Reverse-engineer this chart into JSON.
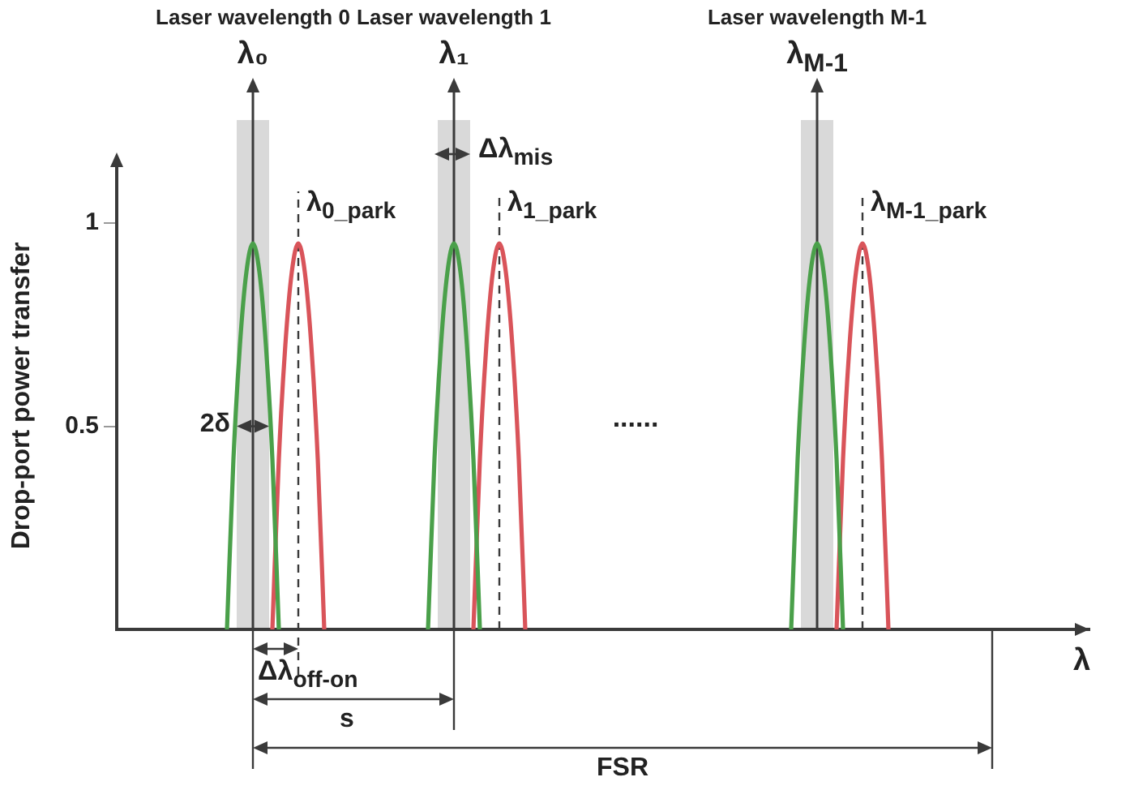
{
  "chart_data": {
    "type": "line",
    "xlabel": "λ",
    "ylabel": "Drop-port power transfer",
    "ylim": [
      0,
      1.15
    ],
    "yticks": [
      0.5,
      1
    ],
    "grid": false,
    "marker": "none",
    "annotations": [
      "Laser wavelength 0",
      "Laser wavelength 1",
      "Laser wavelength M-1",
      "λ₀",
      "λ₁",
      "λ$_{M-1}$",
      "λ$_{0_park}$",
      "λ$_{1_park}$",
      "λ$_{M-1_park}$",
      "Δλ$_{mis}$",
      "2δ",
      "......",
      "Δλ$_{off-on}$",
      "s",
      "FSR"
    ],
    "categories": [
      null,
      null,
      null,
      null,
      null,
      null,
      null,
      null,
      null,
      null,
      null,
      null,
      null,
      null,
      null,
      null,
      null,
      null,
      null,
      null,
      null,
      null,
      null,
      null,
      null,
      null,
      null,
      null,
      null,
      null,
      null,
      null,
      null,
      null,
      null,
      null,
      null,
      null,
      null,
      null,
      null,
      null,
      null,
      null,
      null,
      null,
      null,
      null,
      null,
      null,
      null,
      null,
      null,
      null,
      null,
      null,
      null,
      null,
      null,
      null,
      null,
      null,
      null,
      null,
      null,
      null,
      null,
      null,
      null,
      null,
      null,
      null,
      null,
      null,
      null,
      null,
      null,
      null,
      null,
      null,
      null,
      null,
      null,
      null,
      null,
      null,
      null,
      null,
      null,
      null,
      null,
      null,
      null,
      null,
      null,
      null,
      null,
      null,
      null,
      null,
      null,
      null,
      null,
      null,
      null,
      null,
      null,
      null,
      null,
      null,
      null,
      null,
      null,
      null,
      null,
      null,
      null,
      null,
      null,
      null,
      null,
      null,
      null,
      null,
      null,
      null,
      null,
      null,
      null,
      null,
      null,
      null,
      null,
      null,
      null,
      null,
      null,
      null,
      null,
      null,
      null,
      null,
      null,
      null,
      null,
      null,
      null,
      null,
      null,
      null,
      null
    ],
    "series": [
      {
        "color": "#4aa04a",
        "values": [
          null,
          null,
          null,
          null,
          null,
          null,
          null,
          null,
          null,
          null,
          null,
          null,
          null,
          null,
          null,
          null,
          null,
          0,
          0.42,
          0.7,
          0.88,
          0.95,
          0.88,
          0.7,
          0.42,
          0,
          null,
          null,
          null,
          null,
          null,
          null,
          null,
          null,
          null,
          null,
          null,
          null,
          null,
          null,
          null,
          null,
          null,
          null,
          null,
          null,
          null,
          null,
          0,
          0.42,
          0.7,
          0.88,
          0.95,
          0.88,
          0.7,
          0.42,
          0,
          null,
          null,
          null,
          null,
          null,
          null,
          null,
          null,
          null,
          null,
          null,
          null,
          null,
          null,
          null,
          null,
          null,
          null,
          null,
          null,
          null,
          null,
          null,
          null,
          null,
          null,
          null,
          null,
          null,
          null,
          null,
          null,
          null,
          null,
          null,
          null,
          null,
          null,
          null,
          null,
          null,
          null,
          null,
          null,
          null,
          null,
          null,
          0,
          0.42,
          0.7,
          0.88,
          0.95,
          0.88,
          0.7,
          0.42,
          0,
          null,
          null,
          null,
          null,
          null,
          null,
          null,
          null,
          null,
          null,
          null,
          null,
          null,
          null,
          null,
          null,
          null,
          null,
          null,
          null,
          null,
          null,
          null,
          null,
          null,
          null,
          null,
          null,
          null,
          null,
          null,
          null,
          null,
          null,
          null,
          null,
          null,
          null
        ]
      },
      {
        "color": "#d9545a",
        "values": [
          null,
          null,
          null,
          null,
          null,
          null,
          null,
          null,
          null,
          null,
          null,
          null,
          null,
          null,
          null,
          null,
          null,
          null,
          null,
          null,
          null,
          null,
          null,
          null,
          0,
          0.42,
          0.7,
          0.88,
          0.95,
          0.88,
          0.7,
          0.42,
          0,
          null,
          null,
          null,
          null,
          null,
          null,
          null,
          null,
          null,
          null,
          null,
          null,
          null,
          null,
          null,
          null,
          null,
          null,
          null,
          null,
          null,
          null,
          0,
          0.42,
          0.7,
          0.88,
          0.95,
          0.88,
          0.7,
          0.42,
          0,
          null,
          null,
          null,
          null,
          null,
          null,
          null,
          null,
          null,
          null,
          null,
          null,
          null,
          null,
          null,
          null,
          null,
          null,
          null,
          null,
          null,
          null,
          null,
          null,
          null,
          null,
          null,
          null,
          null,
          null,
          null,
          null,
          null,
          null,
          null,
          null,
          null,
          null,
          null,
          null,
          null,
          null,
          null,
          null,
          null,
          null,
          null,
          0,
          0.42,
          0.7,
          0.88,
          0.95,
          0.88,
          0.7,
          0.42,
          0,
          null,
          null,
          null,
          null,
          null,
          null,
          null,
          null,
          null,
          null,
          null,
          null,
          null,
          null,
          null,
          null,
          null,
          null,
          null,
          null,
          null,
          null,
          null,
          null,
          null,
          null,
          null,
          null,
          null,
          null,
          null
        ]
      }
    ]
  }
}
